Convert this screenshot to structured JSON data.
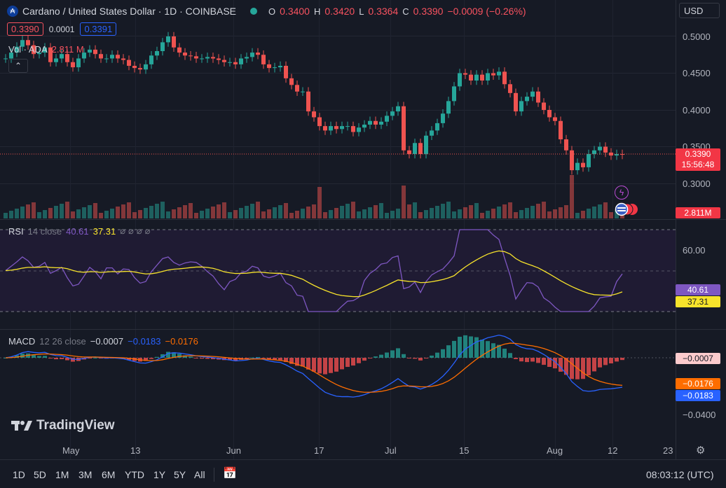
{
  "header": {
    "symbol_title": "Cardano / United States Dollar · 1D · COINBASE",
    "ohlc": {
      "o_label": "O",
      "o": "0.3400",
      "h_label": "H",
      "h": "0.3420",
      "l_label": "L",
      "l": "0.3364",
      "c_label": "C",
      "c": "0.3390",
      "change": "−0.0009 (−0.26%)"
    },
    "sell_price": "0.3390",
    "spread": "0.0001",
    "buy_price": "0.3391",
    "currency": "USD",
    "volume_label": "Vol · ADA",
    "volume_value": "2.811 M"
  },
  "price_axis": [
    "0.5000",
    "0.4500",
    "0.4000",
    "0.3500",
    "0.3000"
  ],
  "price_tag": {
    "price": "0.3390",
    "countdown": "15:56:48",
    "volume": "2.811M"
  },
  "rsi": {
    "label": "RSI",
    "params": "14 close",
    "value1": "40.61",
    "value2": "37.31",
    "axis": [
      "60.00"
    ],
    "tag1": "40.61",
    "tag2": "37.31"
  },
  "macd": {
    "label": "MACD",
    "params": "12 26 close",
    "hist": "−0.0007",
    "macd": "−0.0183",
    "signal": "−0.0176",
    "axis": [
      "−0.0400"
    ],
    "tag_hist": "−0.0007",
    "tag_signal": "−0.0176",
    "tag_macd": "−0.0183"
  },
  "x_axis": [
    "May",
    "13",
    "Jun",
    "17",
    "Jul",
    "15",
    "Aug",
    "12",
    "23"
  ],
  "timeframes": [
    "1D",
    "5D",
    "1M",
    "3M",
    "6M",
    "YTD",
    "1Y",
    "5Y",
    "All"
  ],
  "clock": "08:03:12 (UTC)",
  "brand": "TradingView",
  "colors": {
    "up": "#26a69a",
    "down": "#ef5350",
    "rsi": "#7e57c2",
    "rsi_ma": "#f7e32b",
    "macd": "#2962ff",
    "signal": "#ff6d00"
  }
}
